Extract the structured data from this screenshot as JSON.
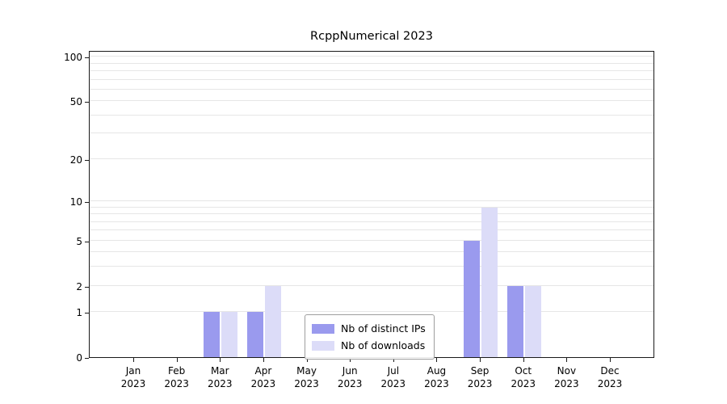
{
  "title": "RcppNumerical 2023",
  "chart_data": {
    "type": "bar",
    "title": "RcppNumerical 2023",
    "scale": "log1p",
    "categories": [
      "Jan",
      "Feb",
      "Mar",
      "Apr",
      "May",
      "Jun",
      "Jul",
      "Aug",
      "Sep",
      "Oct",
      "Nov",
      "Dec"
    ],
    "year": "2023",
    "series": [
      {
        "name": "Nb of distinct IPs",
        "color": "#9a9aee",
        "values": [
          0,
          0,
          1,
          1,
          0,
          0,
          0,
          0,
          5,
          2,
          0,
          0
        ]
      },
      {
        "name": "Nb of downloads",
        "color": "#dcdcf8",
        "values": [
          0,
          0,
          1,
          2,
          0,
          0,
          0,
          0,
          9,
          2,
          0,
          0
        ]
      }
    ],
    "y_ticks": [
      0,
      1,
      2,
      5,
      10,
      20,
      50,
      100
    ],
    "ylim": [
      0,
      111
    ],
    "gridlines": [
      1,
      2,
      3,
      4,
      5,
      6,
      7,
      8,
      9,
      10,
      20,
      30,
      40,
      50,
      60,
      70,
      80,
      90,
      100
    ],
    "xlabel": "",
    "ylabel": "",
    "legend_position": "lower-center",
    "grid": "horizontal-minor"
  }
}
